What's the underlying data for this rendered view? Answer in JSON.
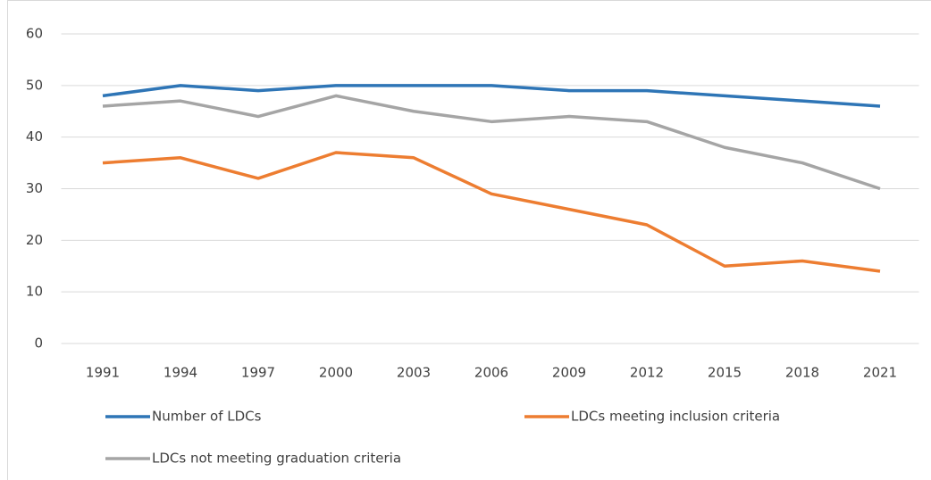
{
  "chart_data": {
    "type": "line",
    "categories": [
      "1991",
      "1994",
      "1997",
      "2000",
      "2003",
      "2006",
      "2009",
      "2012",
      "2015",
      "2018",
      "2021"
    ],
    "series": [
      {
        "name": "Number of LDCs",
        "color": "#2e75b6",
        "values": [
          48,
          50,
          49,
          50,
          50,
          50,
          49,
          49,
          48,
          47,
          46
        ]
      },
      {
        "name": "LDCs meeting inclusion criteria",
        "color": "#ed7d31",
        "values": [
          35,
          36,
          32,
          37,
          36,
          29,
          26,
          23,
          15,
          16,
          14
        ]
      },
      {
        "name": "LDCs not meeting graduation criteria",
        "color": "#a5a5a5",
        "values": [
          46,
          47,
          44,
          48,
          45,
          43,
          44,
          43,
          38,
          35,
          30
        ]
      }
    ],
    "ylim": [
      0,
      60
    ],
    "yticks": [
      0,
      10,
      20,
      30,
      40,
      50,
      60
    ],
    "grid": true
  }
}
